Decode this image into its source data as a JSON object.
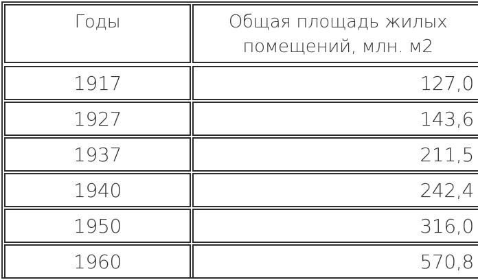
{
  "table": {
    "headers": [
      "Годы",
      "Общая площадь жилых помещений, млн. м2"
    ],
    "header_line1": "Общая площадь жилых",
    "header_line2": "помещений, млн. м2",
    "rows": [
      {
        "year": "1917",
        "area": "127,0"
      },
      {
        "year": "1927",
        "area": "143,6"
      },
      {
        "year": "1937",
        "area": "211,5"
      },
      {
        "year": "1940",
        "area": "242,4"
      },
      {
        "year": "1950",
        "area": "316,0"
      },
      {
        "year": "1960",
        "area": "570,8"
      }
    ]
  }
}
